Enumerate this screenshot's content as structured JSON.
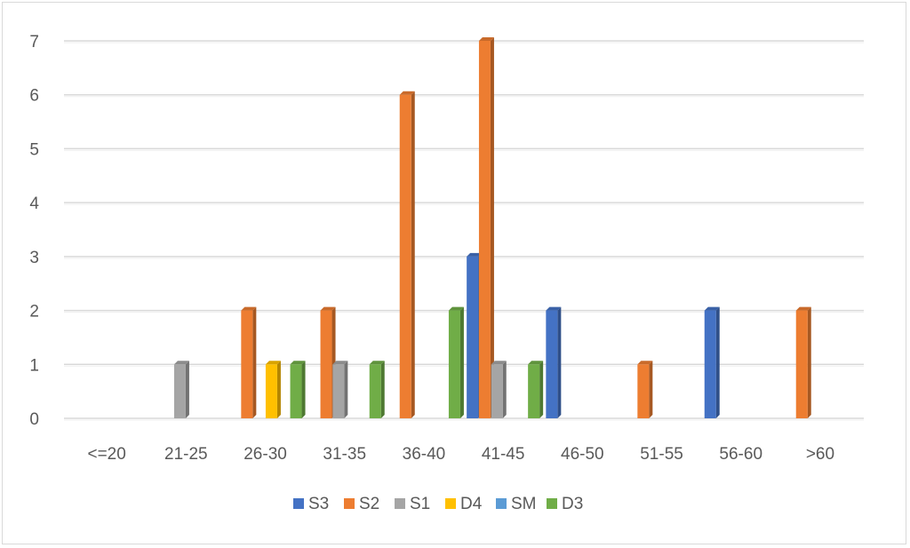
{
  "chart_data": {
    "type": "bar",
    "categories": [
      "<=20",
      "21-25",
      "26-30",
      "31-35",
      "36-40",
      "41-45",
      "46-50",
      "51-55",
      "56-60",
      ">60"
    ],
    "series": [
      {
        "name": "S3",
        "color": "#4472C4",
        "values": [
          0,
          0,
          0,
          0,
          0,
          3,
          2,
          0,
          2,
          0
        ]
      },
      {
        "name": "S2",
        "color": "#ED7D31",
        "values": [
          0,
          0,
          2,
          2,
          6,
          7,
          0,
          1,
          0,
          2
        ]
      },
      {
        "name": "S1",
        "color": "#A5A5A5",
        "values": [
          0,
          1,
          0,
          1,
          0,
          1,
          0,
          0,
          0,
          0
        ]
      },
      {
        "name": "D4",
        "color": "#FFC000",
        "values": [
          0,
          0,
          1,
          0,
          0,
          0,
          0,
          0,
          0,
          0
        ]
      },
      {
        "name": "SM",
        "color": "#5B9BD5",
        "values": [
          0,
          0,
          0,
          0,
          0,
          0,
          0,
          0,
          0,
          0
        ]
      },
      {
        "name": "D3",
        "color": "#70AD47",
        "values": [
          0,
          0,
          1,
          1,
          2,
          1,
          0,
          0,
          0,
          0
        ]
      }
    ],
    "ylim": [
      0,
      7
    ],
    "yticks": [
      "0",
      "1",
      "2",
      "3",
      "4",
      "5",
      "6",
      "7"
    ],
    "grid": true,
    "legend_position": "bottom",
    "title": "",
    "xlabel": "",
    "ylabel": ""
  }
}
